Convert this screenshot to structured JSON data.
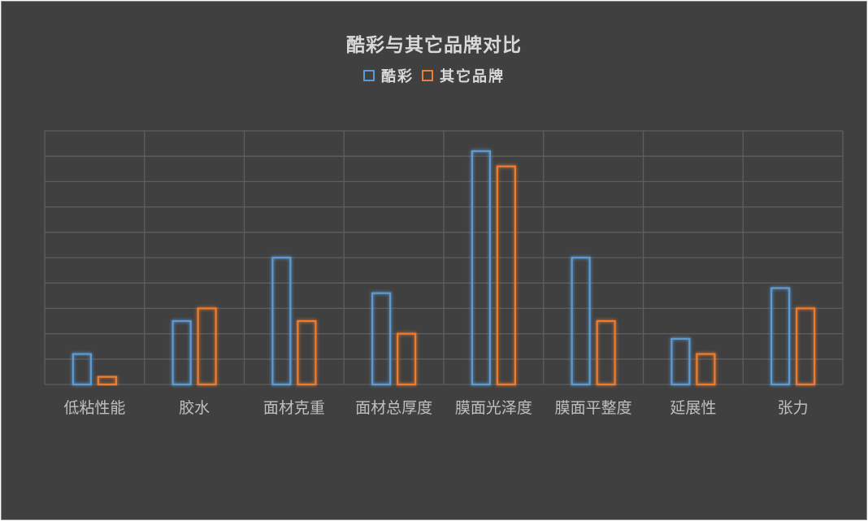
{
  "chart_data": {
    "type": "bar",
    "title": "酷彩与其它品牌对比",
    "xlabel": "",
    "ylabel": "",
    "categories": [
      "低粘性能",
      "胶水",
      "面材克重",
      "面材总厚度",
      "膜面光泽度",
      "膜面平整度",
      "延展性",
      "张力"
    ],
    "series": [
      {
        "name": "酷彩",
        "color": "#5b9bd5",
        "values": [
          1.2,
          2.5,
          5.0,
          3.6,
          9.2,
          5.0,
          1.8,
          3.8
        ]
      },
      {
        "name": "其它品牌",
        "color": "#ed7d31",
        "values": [
          0.3,
          3.0,
          2.5,
          2.0,
          8.6,
          2.5,
          1.2,
          3.0
        ]
      }
    ],
    "ylim": [
      0,
      10
    ],
    "grid": true,
    "y_tick_labels_shown": false,
    "legend_position": "top"
  }
}
